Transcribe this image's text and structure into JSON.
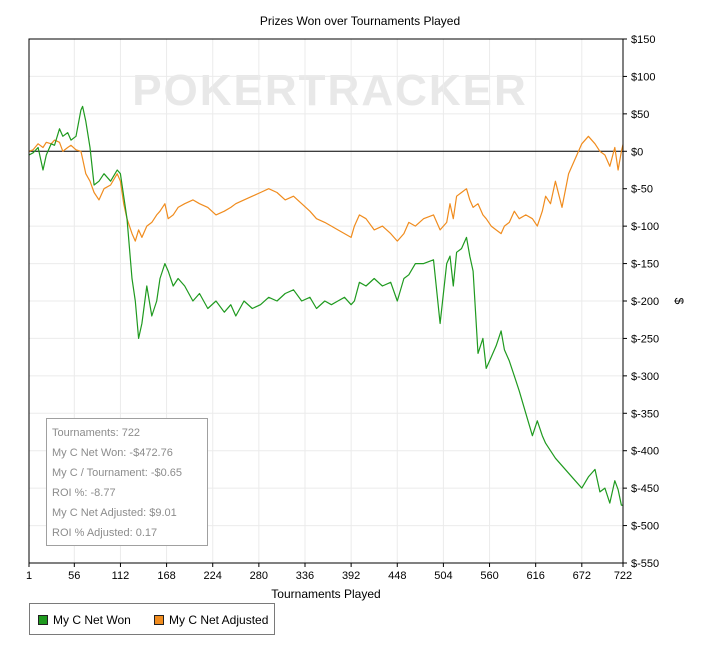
{
  "chart_data": {
    "type": "line",
    "title": "Prizes Won over Tournaments Played",
    "xlabel": "Tournaments Played",
    "ylabel": "$",
    "watermark": "POKERTRACKER",
    "xlim": [
      1,
      722
    ],
    "ylim": [
      -550,
      150
    ],
    "x_ticks": [
      1,
      56,
      112,
      168,
      224,
      280,
      336,
      392,
      448,
      504,
      560,
      616,
      672,
      722
    ],
    "y_ticks": [
      150,
      100,
      50,
      0,
      -50,
      -100,
      -150,
      -200,
      -250,
      -300,
      -350,
      -400,
      -450,
      -500,
      -550
    ],
    "y_tick_labels": [
      "$150",
      "$100",
      "$50",
      "$0",
      "$-50",
      "$-100",
      "$-150",
      "$-200",
      "$-250",
      "$-300",
      "$-350",
      "$-400",
      "$-450",
      "$-500",
      "$-550"
    ],
    "grid": true,
    "legend_position": "bottom-left",
    "series": [
      {
        "name": "My C Net Won",
        "color": "#1f9a1f",
        "x": [
          1,
          6,
          12,
          18,
          22,
          28,
          32,
          38,
          42,
          48,
          52,
          58,
          64,
          66,
          70,
          75,
          80,
          86,
          92,
          100,
          108,
          112,
          116,
          120,
          126,
          130,
          134,
          138,
          144,
          150,
          156,
          160,
          166,
          170,
          176,
          182,
          190,
          200,
          208,
          218,
          228,
          238,
          246,
          252,
          262,
          272,
          282,
          292,
          302,
          312,
          322,
          332,
          342,
          350,
          360,
          368,
          376,
          384,
          392,
          396,
          402,
          410,
          420,
          430,
          440,
          448,
          456,
          462,
          470,
          480,
          492,
          500,
          508,
          512,
          516,
          520,
          526,
          532,
          536,
          540,
          546,
          552,
          556,
          562,
          568,
          574,
          578,
          584,
          590,
          596,
          604,
          612,
          618,
          624,
          628,
          634,
          640,
          648,
          656,
          664,
          672,
          680,
          688,
          694,
          700,
          706,
          712,
          716,
          720,
          722
        ],
        "y": [
          -5,
          -2,
          5,
          -25,
          -5,
          10,
          8,
          30,
          20,
          25,
          15,
          20,
          55,
          60,
          40,
          5,
          -45,
          -40,
          -30,
          -40,
          -25,
          -30,
          -60,
          -90,
          -170,
          -200,
          -250,
          -230,
          -180,
          -220,
          -200,
          -170,
          -150,
          -160,
          -180,
          -170,
          -180,
          -200,
          -190,
          -210,
          -200,
          -215,
          -205,
          -220,
          -200,
          -210,
          -205,
          -195,
          -200,
          -190,
          -185,
          -200,
          -195,
          -210,
          -200,
          -205,
          -200,
          -195,
          -205,
          -200,
          -175,
          -180,
          -170,
          -180,
          -175,
          -200,
          -170,
          -165,
          -150,
          -150,
          -145,
          -230,
          -150,
          -140,
          -180,
          -135,
          -130,
          -115,
          -140,
          -160,
          -270,
          -250,
          -290,
          -275,
          -260,
          -240,
          -265,
          -280,
          -300,
          -320,
          -350,
          -380,
          -360,
          -380,
          -390,
          -400,
          -410,
          -420,
          -430,
          -440,
          -450,
          -435,
          -425,
          -455,
          -450,
          -470,
          -440,
          -452,
          -472.76,
          -472.76
        ]
      },
      {
        "name": "My C Net Adjusted",
        "color": "#f08c1e",
        "x": [
          1,
          6,
          12,
          18,
          22,
          28,
          32,
          38,
          42,
          48,
          52,
          58,
          64,
          66,
          70,
          75,
          80,
          86,
          92,
          100,
          108,
          112,
          116,
          120,
          126,
          130,
          134,
          138,
          144,
          150,
          156,
          160,
          166,
          170,
          176,
          182,
          190,
          200,
          208,
          218,
          228,
          238,
          246,
          252,
          262,
          272,
          282,
          292,
          302,
          312,
          322,
          332,
          342,
          350,
          360,
          368,
          376,
          384,
          392,
          396,
          402,
          410,
          420,
          430,
          440,
          448,
          456,
          462,
          470,
          480,
          492,
          500,
          508,
          512,
          516,
          520,
          526,
          532,
          536,
          540,
          546,
          552,
          556,
          562,
          568,
          574,
          578,
          584,
          590,
          596,
          604,
          612,
          618,
          624,
          628,
          634,
          640,
          648,
          656,
          664,
          672,
          680,
          688,
          694,
          700,
          706,
          712,
          716,
          720,
          722
        ],
        "y": [
          0,
          2,
          10,
          5,
          12,
          10,
          15,
          12,
          0,
          5,
          8,
          2,
          0,
          -10,
          -30,
          -40,
          -55,
          -65,
          -50,
          -45,
          -30,
          -40,
          -70,
          -90,
          -110,
          -120,
          -105,
          -115,
          -100,
          -95,
          -85,
          -80,
          -70,
          -90,
          -85,
          -75,
          -70,
          -65,
          -70,
          -75,
          -85,
          -80,
          -75,
          -70,
          -65,
          -60,
          -55,
          -50,
          -55,
          -65,
          -60,
          -70,
          -80,
          -90,
          -95,
          -100,
          -105,
          -110,
          -115,
          -100,
          -85,
          -90,
          -105,
          -100,
          -110,
          -120,
          -110,
          -95,
          -100,
          -90,
          -85,
          -105,
          -95,
          -70,
          -90,
          -60,
          -55,
          -50,
          -65,
          -75,
          -70,
          -85,
          -90,
          -100,
          -105,
          -110,
          -100,
          -95,
          -80,
          -90,
          -85,
          -90,
          -100,
          -80,
          -60,
          -70,
          -40,
          -75,
          -30,
          -10,
          10,
          20,
          10,
          0,
          -5,
          -20,
          5,
          -25,
          0,
          9.01
        ]
      }
    ],
    "stats": [
      "Tournaments: 722",
      "My C Net Won: -$472.76",
      "My C / Tournament: -$0.65",
      "ROI %: -8.77",
      "My C Net Adjusted: $9.01",
      "ROI % Adjusted: 0.17"
    ],
    "axis_color": "#000000",
    "grid_color": "#ebebeb",
    "zero_line_color": "#000000"
  }
}
